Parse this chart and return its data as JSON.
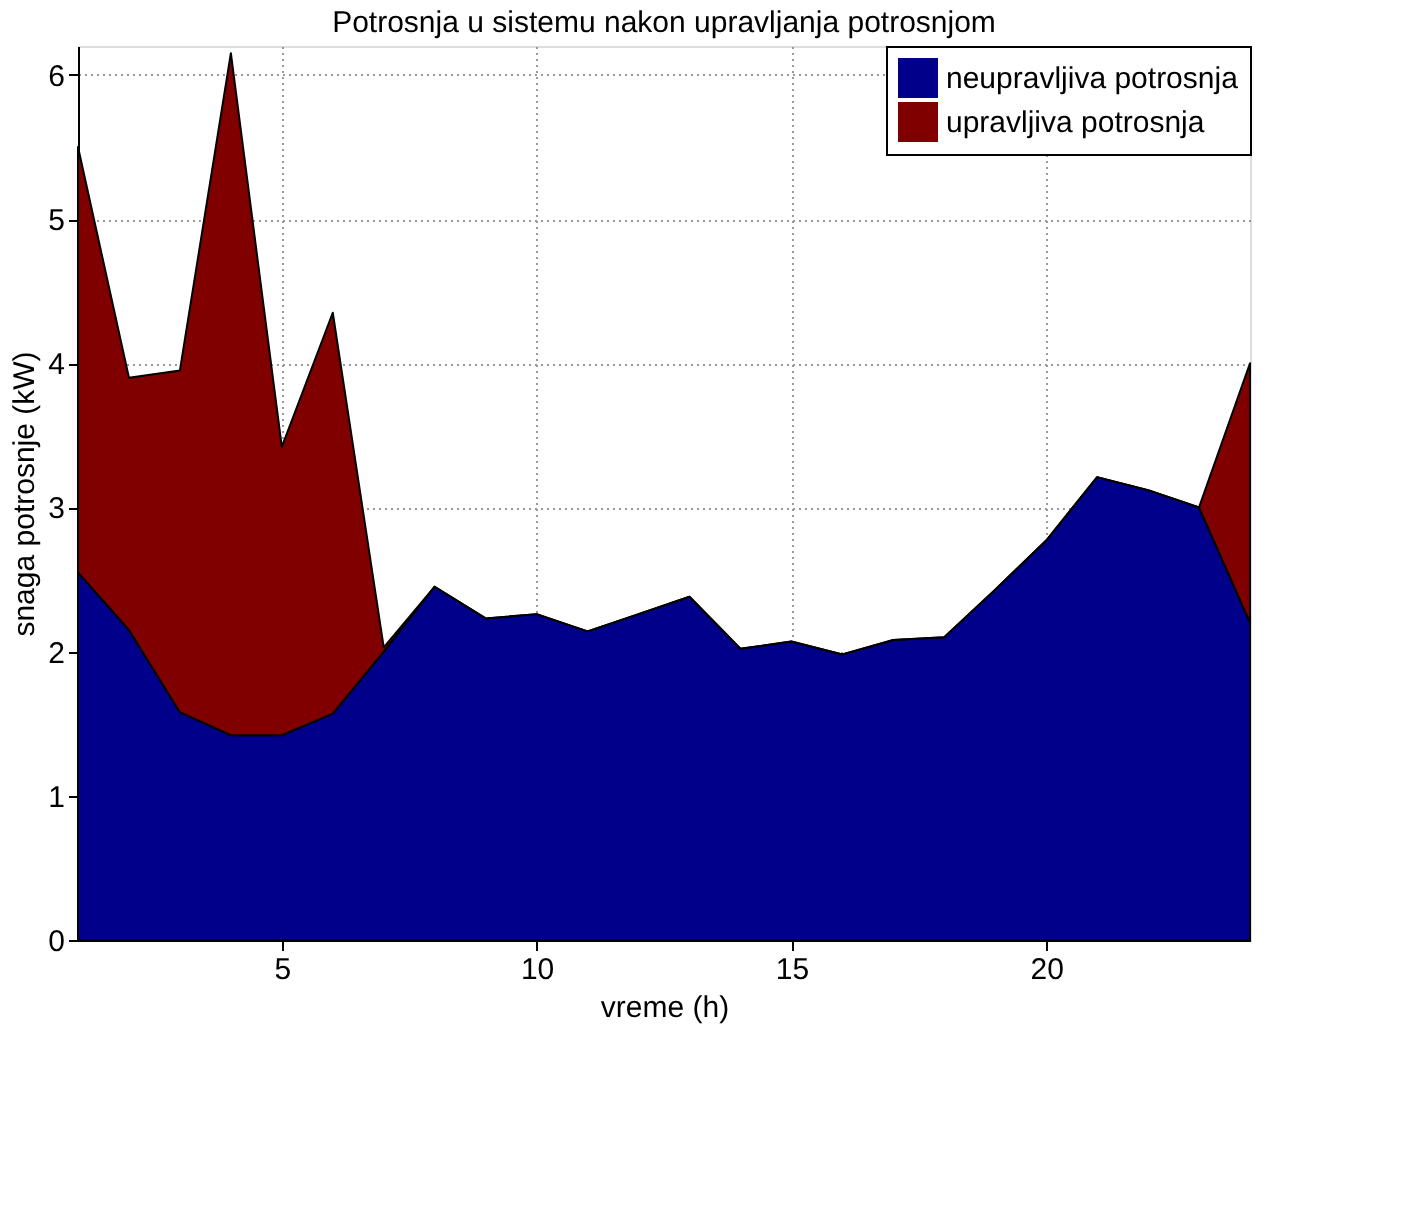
{
  "chart_data": {
    "type": "area",
    "stacked": true,
    "title": "Potrosnja u sistemu nakon upravljanja potrosnjom",
    "xlabel": "vreme (h)",
    "ylabel": "snaga potrosnje (kW)",
    "x": [
      1,
      2,
      3,
      4,
      5,
      6,
      7,
      8,
      9,
      10,
      11,
      12,
      13,
      14,
      15,
      16,
      17,
      18,
      19,
      20,
      21,
      22,
      23,
      24
    ],
    "series": [
      {
        "name": "neupravljiva potrosnja",
        "color": "#00008b",
        "values": [
          2.55,
          2.15,
          1.58,
          1.42,
          1.42,
          1.57,
          2.0,
          2.45,
          2.23,
          2.26,
          2.14,
          2.26,
          2.38,
          2.02,
          2.07,
          1.98,
          2.08,
          2.1,
          2.43,
          2.77,
          3.21,
          3.12,
          3.0,
          2.2
        ]
      },
      {
        "name": "upravljiva potrosnja",
        "color": "#800000",
        "values": [
          2.95,
          1.75,
          2.37,
          4.73,
          2.0,
          2.78,
          0.03,
          0,
          0,
          0,
          0,
          0,
          0,
          0,
          0,
          0,
          0,
          0,
          0,
          0,
          0,
          0,
          0,
          1.8
        ]
      }
    ],
    "xlim": [
      1,
      24
    ],
    "xticks": [
      5,
      10,
      15,
      20
    ],
    "ylim": [
      0,
      6.2
    ],
    "yticks": [
      0,
      1,
      2,
      3,
      4,
      5,
      6
    ],
    "grid": true,
    "legend": "top right"
  }
}
